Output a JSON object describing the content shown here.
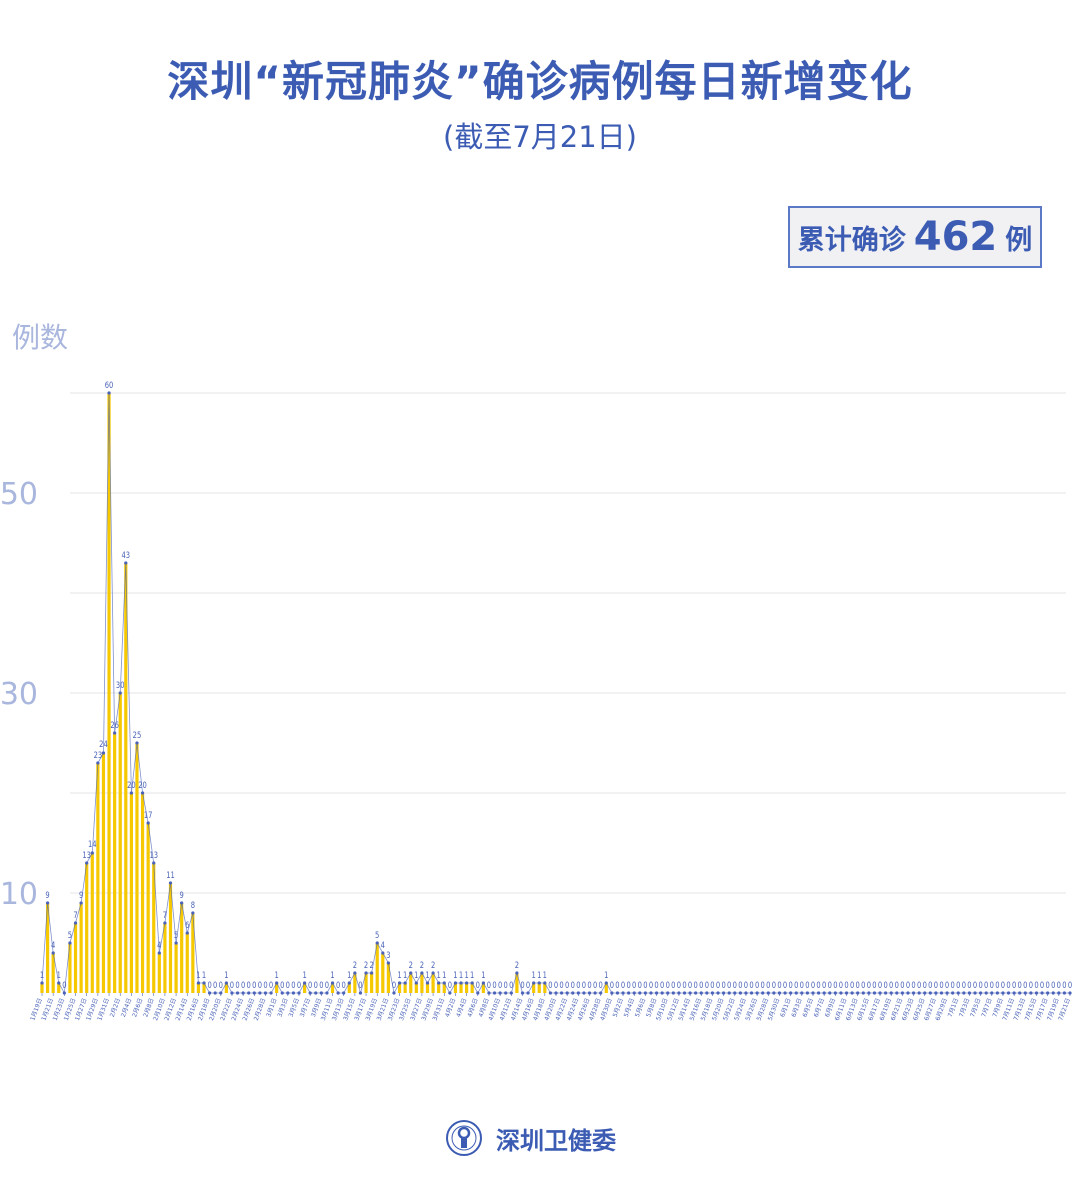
{
  "header": {
    "title": "深圳“新冠肺炎”确诊病例每日新增变化",
    "subtitle": "(截至7月21日)"
  },
  "total": {
    "label": "累计确诊",
    "value": "462",
    "unit": "例"
  },
  "footer": {
    "org": "深圳卫健委",
    "logo_icon": "health-commission-seal-icon"
  },
  "colors": {
    "accent": "#3c5cb4",
    "bar": "#f5c800",
    "line": "#4a63b8",
    "axis_text": "#a9b6dd",
    "grid": "#e4e4e4"
  },
  "chart_data": {
    "type": "bar",
    "title": "",
    "ylabel": "例数",
    "xlabel": "",
    "ylim": [
      0,
      60
    ],
    "yticks": [
      10,
      30,
      50
    ],
    "grid": true,
    "overlay_line": true,
    "data_labels": true,
    "categories": [
      "1月19日",
      "1月20日",
      "1月21日",
      "1月22日",
      "1月23日",
      "1月24日",
      "1月25日",
      "1月26日",
      "1月27日",
      "1月28日",
      "1月29日",
      "1月30日",
      "1月31日",
      "2月1日",
      "2月2日",
      "2月3日",
      "2月4日",
      "2月5日",
      "2月6日",
      "2月7日",
      "2月8日",
      "2月9日",
      "2月10日",
      "2月11日",
      "2月12日",
      "2月13日",
      "2月14日",
      "2月15日",
      "2月16日",
      "2月17日",
      "2月18日",
      "2月19日",
      "2月20日",
      "2月21日",
      "2月22日",
      "2月23日",
      "2月24日",
      "2月25日",
      "2月26日",
      "2月27日",
      "2月28日",
      "2月29日",
      "3月1日",
      "3月2日",
      "3月3日",
      "3月4日",
      "3月5日",
      "3月6日",
      "3月7日",
      "3月8日",
      "3月9日",
      "3月10日",
      "3月11日",
      "3月12日",
      "3月13日",
      "3月14日",
      "3月15日",
      "3月16日",
      "3月17日",
      "3月18日",
      "3月19日",
      "3月20日",
      "3月21日",
      "3月22日",
      "3月23日",
      "3月24日",
      "3月25日",
      "3月26日",
      "3月27日",
      "3月28日",
      "3月29日",
      "3月30日",
      "3月31日",
      "4月1日",
      "4月2日",
      "4月3日",
      "4月4日",
      "4月5日",
      "4月6日",
      "4月7日",
      "4月8日",
      "4月9日",
      "4月10日",
      "4月11日",
      "4月12日",
      "4月13日",
      "4月14日",
      "4月15日",
      "4月16日",
      "4月17日",
      "4月18日",
      "4月19日",
      "4月20日",
      "4月21日",
      "4月22日",
      "4月23日",
      "4月24日",
      "4月25日",
      "4月26日",
      "4月27日",
      "4月28日",
      "4月29日",
      "4月30日",
      "5月1日",
      "5月2日",
      "5月3日",
      "5月4日",
      "5月5日",
      "5月6日",
      "5月7日",
      "5月8日",
      "5月9日",
      "5月10日",
      "5月11日",
      "5月12日",
      "5月13日",
      "5月14日",
      "5月15日",
      "5月16日",
      "5月17日",
      "5月18日",
      "5月19日",
      "5月20日",
      "5月21日",
      "5月22日",
      "5月23日",
      "5月24日",
      "5月25日",
      "5月26日",
      "5月27日",
      "5月28日",
      "5月29日",
      "5月30日",
      "5月31日",
      "6月1日",
      "6月2日",
      "6月3日",
      "6月4日",
      "6月5日",
      "6月6日",
      "6月7日",
      "6月8日",
      "6月9日",
      "6月10日",
      "6月11日",
      "6月12日",
      "6月13日",
      "6月14日",
      "6月15日",
      "6月16日",
      "6月17日",
      "6月18日",
      "6月19日",
      "6月20日",
      "6月21日",
      "6月22日",
      "6月23日",
      "6月24日",
      "6月25日",
      "6月26日",
      "6月27日",
      "6月28日",
      "6月29日",
      "6月30日",
      "7月1日",
      "7月2日",
      "7月3日",
      "7月4日",
      "7月5日",
      "7月6日",
      "7月7日",
      "7月8日",
      "7月9日",
      "7月10日",
      "7月11日",
      "7月12日",
      "7月13日",
      "7月14日",
      "7月15日",
      "7月16日",
      "7月17日",
      "7月18日",
      "7月19日",
      "7月20日",
      "7月21日"
    ],
    "values": [
      1,
      9,
      4,
      1,
      0,
      5,
      7,
      9,
      13,
      14,
      23,
      24,
      60,
      26,
      30,
      43,
      20,
      25,
      20,
      17,
      13,
      4,
      7,
      11,
      5,
      9,
      6,
      8,
      1,
      1,
      0,
      0,
      0,
      1,
      0,
      0,
      0,
      0,
      0,
      0,
      0,
      0,
      1,
      0,
      0,
      0,
      0,
      1,
      0,
      0,
      0,
      0,
      1,
      0,
      0,
      1,
      2,
      0,
      2,
      2,
      5,
      4,
      3,
      0,
      1,
      1,
      2,
      1,
      2,
      1,
      2,
      1,
      1,
      0,
      1,
      1,
      1,
      1,
      0,
      1,
      0,
      0,
      0,
      0,
      0,
      2,
      0,
      0,
      1,
      1,
      1,
      0,
      0,
      0,
      0,
      0,
      0,
      0,
      0,
      0,
      0,
      1,
      0,
      0,
      0,
      0,
      0,
      0,
      0,
      0,
      0,
      0,
      0,
      0,
      0,
      0,
      0,
      0,
      0,
      0,
      0,
      0,
      0,
      0,
      0,
      0,
      0,
      0,
      0,
      0,
      0,
      0,
      0,
      0,
      0,
      0,
      0,
      0,
      0,
      0,
      0,
      0,
      0,
      0,
      0,
      0,
      0,
      0,
      0,
      0,
      0,
      0,
      0,
      0,
      0,
      0,
      0,
      0,
      0,
      0,
      0,
      0,
      0,
      0,
      0,
      0,
      0,
      0,
      0,
      0,
      0,
      0,
      0,
      0,
      0,
      0,
      0,
      0,
      0,
      0,
      0,
      0,
      0,
      0,
      0
    ]
  }
}
